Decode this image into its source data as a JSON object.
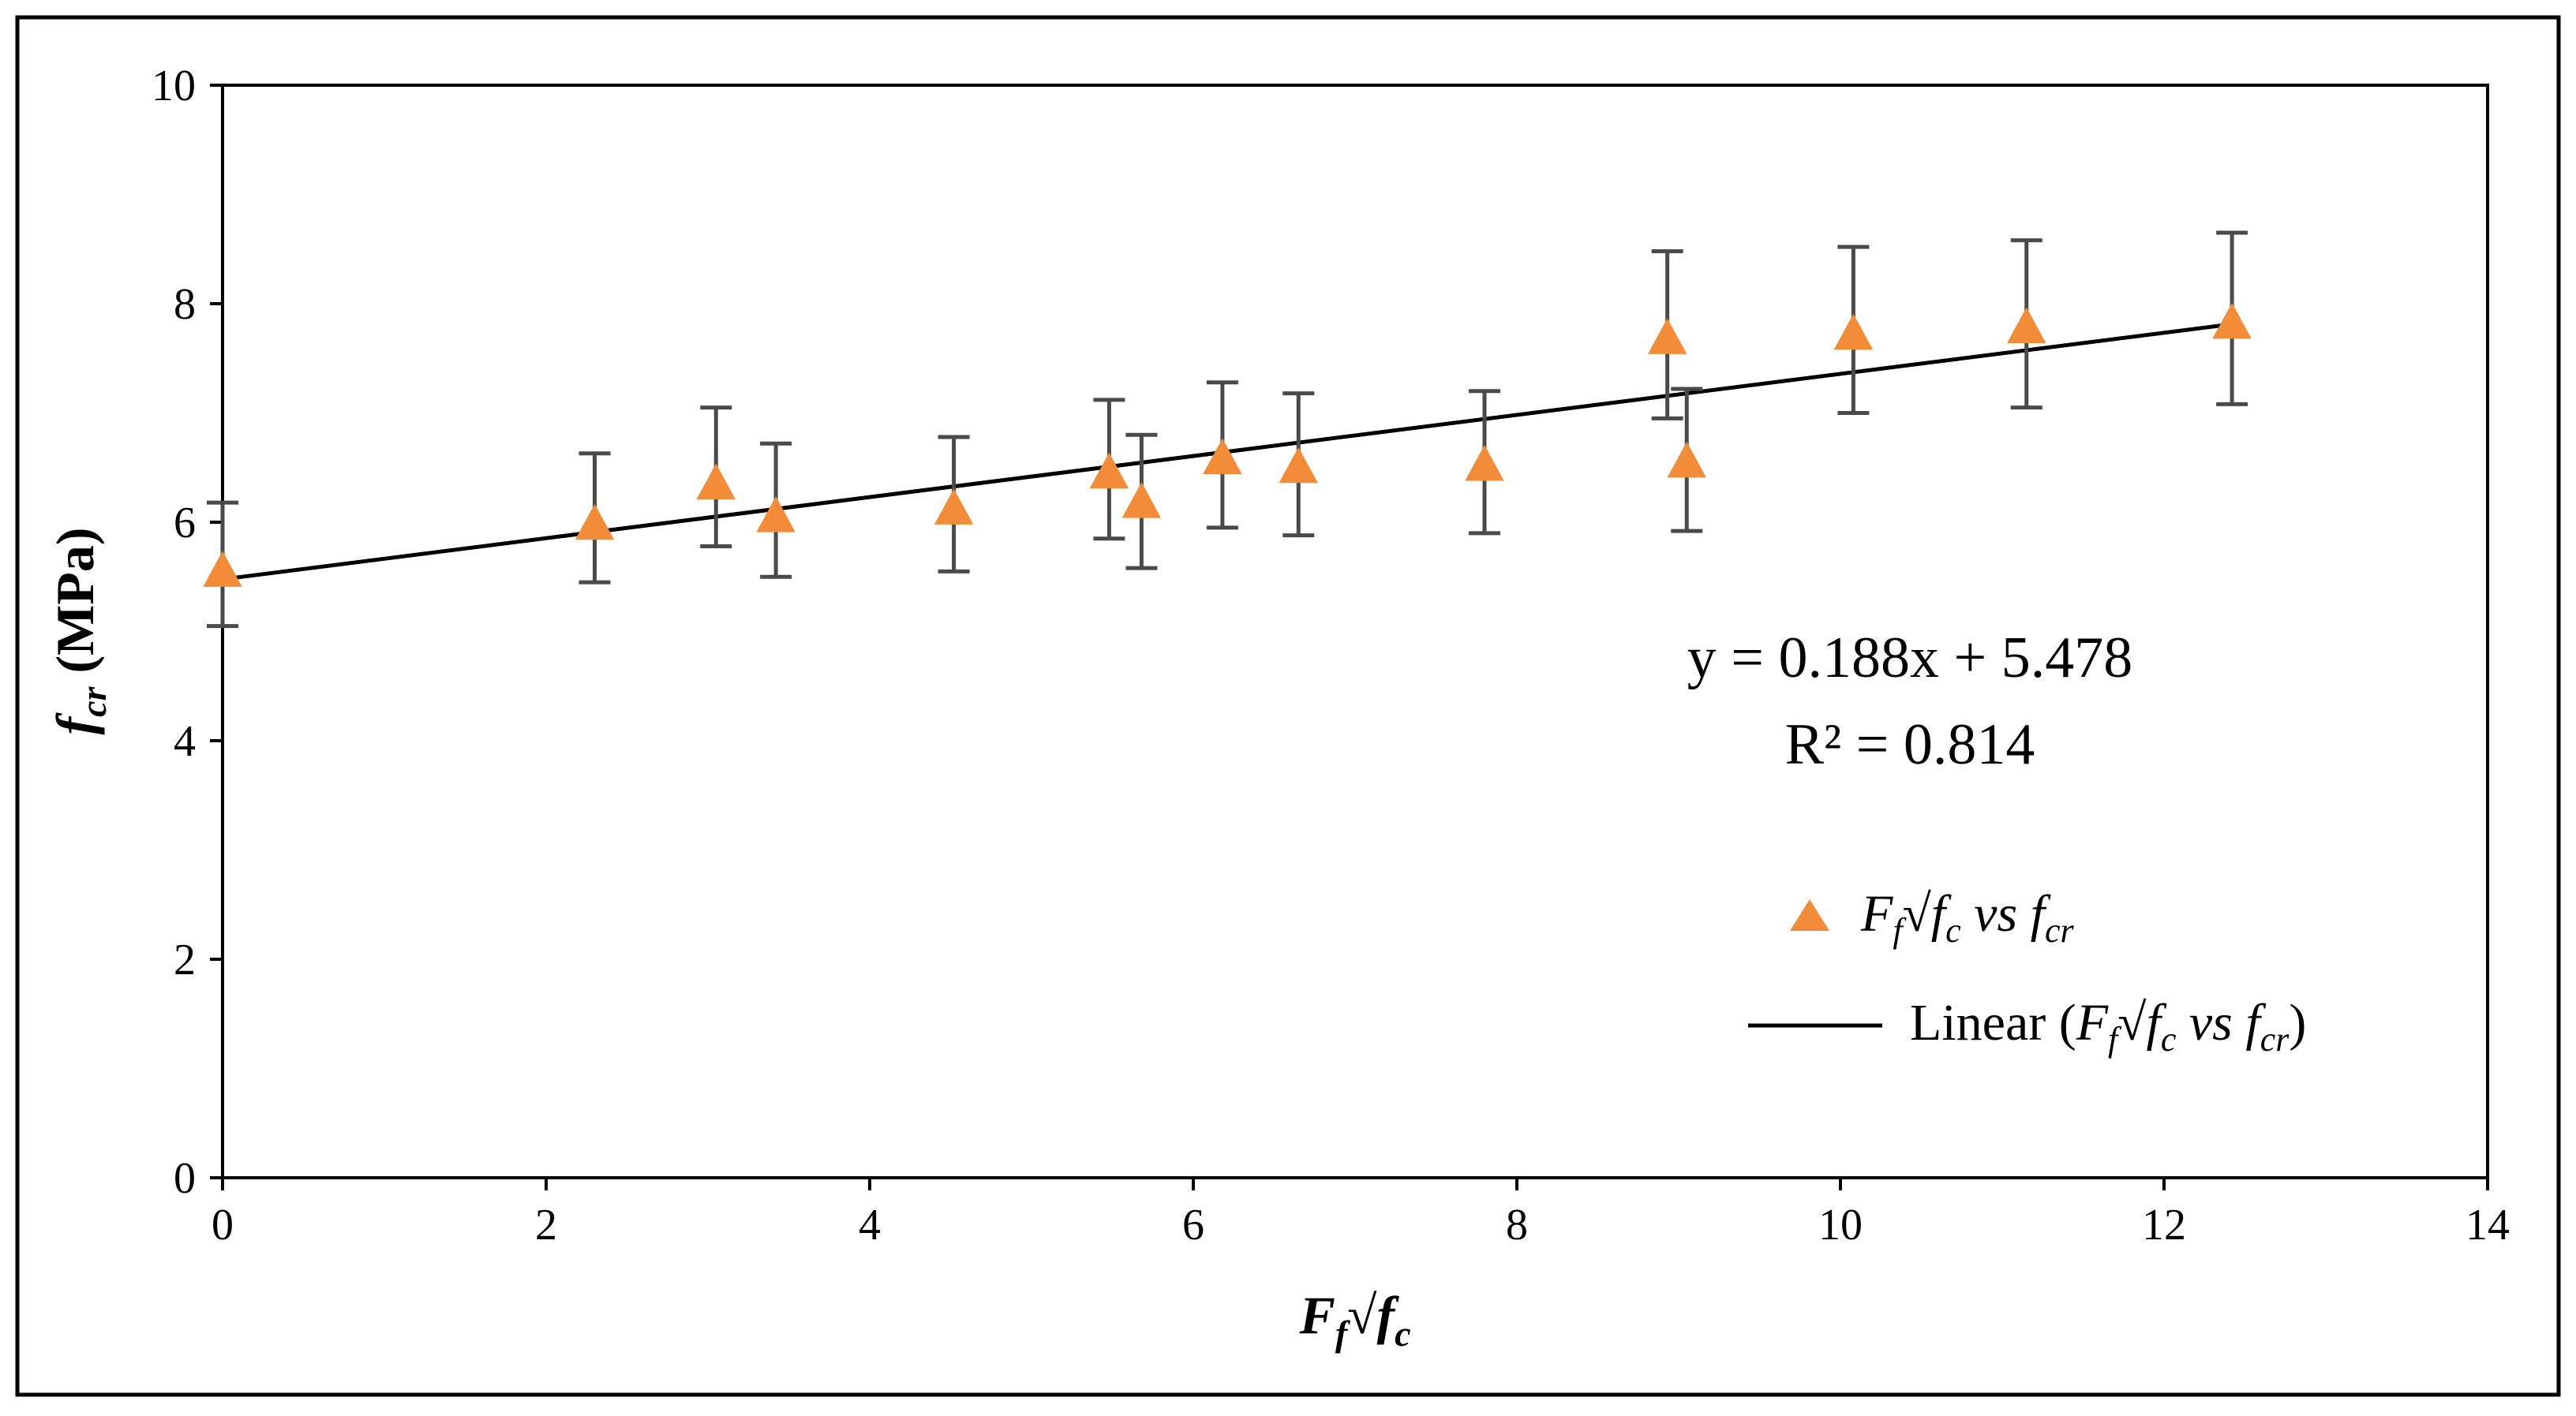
{
  "chart_data": {
    "type": "scatter",
    "title": "",
    "xlabel": {
      "main": "F",
      "sub": "f",
      "root": "√",
      "main2": "f",
      "sub2": "c"
    },
    "ylabel": {
      "main": "f",
      "sub": "cr",
      "unit": " (MPa)"
    },
    "xlim": [
      0,
      14
    ],
    "ylim": [
      0,
      10
    ],
    "x_ticks": [
      "0",
      "2",
      "4",
      "6",
      "8",
      "10",
      "12",
      "14"
    ],
    "y_ticks": [
      "0",
      "2",
      "4",
      "6",
      "8",
      "10"
    ],
    "grid": false,
    "series": [
      {
        "name": "F_f√f_c vs f_cr",
        "marker": "triangle",
        "color": "#f28c38",
        "points": [
          {
            "x": 0.0,
            "y": 5.55,
            "err_low": 5.05,
            "err_high": 6.18
          },
          {
            "x": 2.3,
            "y": 5.98,
            "err_low": 5.45,
            "err_high": 6.63
          },
          {
            "x": 3.05,
            "y": 6.35,
            "err_low": 5.78,
            "err_high": 7.05
          },
          {
            "x": 3.42,
            "y": 6.05,
            "err_low": 5.5,
            "err_high": 6.72
          },
          {
            "x": 4.52,
            "y": 6.12,
            "err_low": 5.55,
            "err_high": 6.78
          },
          {
            "x": 5.48,
            "y": 6.45,
            "err_low": 5.85,
            "err_high": 7.12
          },
          {
            "x": 5.68,
            "y": 6.18,
            "err_low": 5.58,
            "err_high": 6.8
          },
          {
            "x": 6.18,
            "y": 6.58,
            "err_low": 5.95,
            "err_high": 7.28
          },
          {
            "x": 6.65,
            "y": 6.5,
            "err_low": 5.88,
            "err_high": 7.18
          },
          {
            "x": 7.8,
            "y": 6.52,
            "err_low": 5.9,
            "err_high": 7.2
          },
          {
            "x": 8.93,
            "y": 7.68,
            "err_low": 6.95,
            "err_high": 8.48
          },
          {
            "x": 9.05,
            "y": 6.55,
            "err_low": 5.92,
            "err_high": 7.22
          },
          {
            "x": 10.08,
            "y": 7.72,
            "err_low": 7.0,
            "err_high": 8.52
          },
          {
            "x": 11.15,
            "y": 7.78,
            "err_low": 7.05,
            "err_high": 8.58
          },
          {
            "x": 12.42,
            "y": 7.82,
            "err_low": 7.08,
            "err_high": 8.65
          }
        ]
      }
    ],
    "trendline": {
      "type": "linear",
      "slope": 0.188,
      "intercept": 5.478,
      "x_range": [
        0,
        12.42
      ],
      "color": "#000000"
    },
    "annotations": {
      "equation": "y = 0.188x + 5.478",
      "r_squared": "R² = 0.814"
    },
    "legend": {
      "position": "right",
      "marker_item": {
        "F": "F",
        "f_sub": "f",
        "root": "√",
        "fc": "f",
        "c_sub": "c",
        "vs": " vs ",
        "fcr": "f",
        "cr_sub": "cr"
      },
      "line_item": {
        "prefix": "Linear (",
        "F": "F",
        "f_sub": "f",
        "root": "√",
        "fc": "f",
        "c_sub": "c",
        "vs": " vs ",
        "fcr": "f",
        "cr_sub": "cr",
        "suffix": ")"
      }
    }
  }
}
